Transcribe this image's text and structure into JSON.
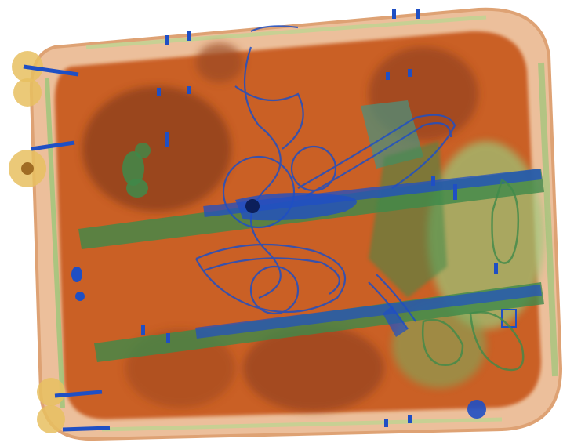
{
  "image": {
    "kind": "x-ray baggage scan",
    "subject": "suitcase",
    "palette": {
      "organic": "#c8581f",
      "organic_dark": "#8a3d1a",
      "inorganic": "#3f8a4a",
      "inorganic_light": "#9cc77a",
      "metal": "#1f4fc4",
      "edge": "#f0c8a0",
      "background": "#ffffff"
    }
  }
}
